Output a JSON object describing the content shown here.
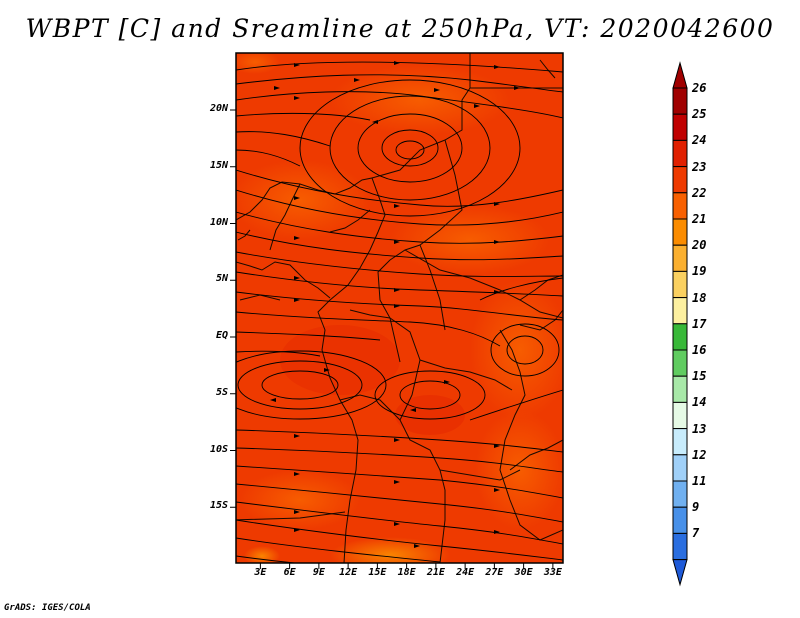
{
  "title": "WBPT [C] and Sreamline at 250hPa, VT: 2020042600",
  "footer": "GrADS: IGES/COLA",
  "map": {
    "y_axis": [
      {
        "label": "20N",
        "lat": 20
      },
      {
        "label": "15N",
        "lat": 15
      },
      {
        "label": "10N",
        "lat": 10
      },
      {
        "label": "5N",
        "lat": 5
      },
      {
        "label": "EQ",
        "lat": 0
      },
      {
        "label": "5S",
        "lat": -5
      },
      {
        "label": "10S",
        "lat": -10
      },
      {
        "label": "15S",
        "lat": -15
      }
    ],
    "x_axis": [
      {
        "label": "3E",
        "lon": 3
      },
      {
        "label": "6E",
        "lon": 6
      },
      {
        "label": "9E",
        "lon": 9
      },
      {
        "label": "12E",
        "lon": 12
      },
      {
        "label": "15E",
        "lon": 15
      },
      {
        "label": "18E",
        "lon": 18
      },
      {
        "label": "21E",
        "lon": 21
      },
      {
        "label": "24E",
        "lon": 24
      },
      {
        "label": "27E",
        "lon": 27
      },
      {
        "label": "30E",
        "lon": 30
      },
      {
        "label": "33E",
        "lon": 33
      }
    ]
  },
  "colorbar": {
    "levels": [
      {
        "label": "26",
        "color": "#a00000"
      },
      {
        "label": "25",
        "color": "#c00000"
      },
      {
        "label": "24",
        "color": "#e02000"
      },
      {
        "label": "23",
        "color": "#ee3a00"
      },
      {
        "label": "22",
        "color": "#f86000"
      },
      {
        "label": "21",
        "color": "#fb8c00"
      },
      {
        "label": "20",
        "color": "#fbb030"
      },
      {
        "label": "19",
        "color": "#fad060"
      },
      {
        "label": "18",
        "color": "#fdf0a0"
      },
      {
        "label": "17",
        "color": "#38b838"
      },
      {
        "label": "16",
        "color": "#60cc60"
      },
      {
        "label": "15",
        "color": "#a8e8a8"
      },
      {
        "label": "14",
        "color": "#e6fae6"
      },
      {
        "label": "13",
        "color": "#c8ecfc"
      },
      {
        "label": "12",
        "color": "#a0d0f8"
      },
      {
        "label": "11",
        "color": "#70b0f0"
      },
      {
        "label": "9",
        "color": "#4890e8"
      },
      {
        "label": "7",
        "color": "#2a6ee0"
      }
    ],
    "top_arrow_color": "#a00000",
    "bottom_arrow_color": "#1e5ad8"
  }
}
